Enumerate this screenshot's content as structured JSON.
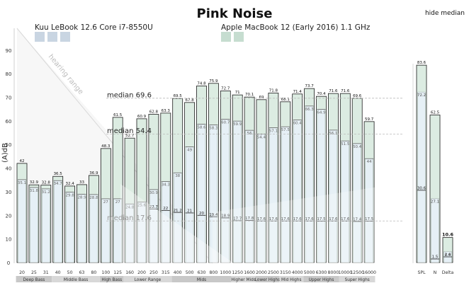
{
  "header": {
    "title": "Pink Noise",
    "hide_median_label": "hide median"
  },
  "legend": {
    "device_a": "Kuu LeBook 12.6 Core i7-8550U",
    "device_b": "Apple MacBook 12 (Early 2016) 1.1 GHz",
    "device_a_color": "#c9d5e2",
    "device_b_color": "#c6ddd0"
  },
  "annotations": {
    "hearing_range": "hearing range"
  },
  "colors": {
    "bar_fill": "#dcece2",
    "inner_fill": "#e6f0f6",
    "bar_stroke": "#1a1a1a",
    "group_band": "#c8c8c8",
    "gray_overlay": "#bdbdbd"
  },
  "chart_data": {
    "type": "bar",
    "title": "Pink Noise",
    "ylabel": "(A)dB",
    "ylim": [
      0,
      100
    ],
    "yticks": [
      0,
      10,
      20,
      30,
      40,
      50,
      60,
      70,
      80,
      90
    ],
    "categories": [
      "20",
      "25",
      "31",
      "40",
      "50",
      "63",
      "80",
      "100",
      "125",
      "160",
      "200",
      "250",
      "315",
      "400",
      "500",
      "630",
      "800",
      "1000",
      "1250",
      "1600",
      "2000",
      "2500",
      "3150",
      "4000",
      "5000",
      "6300",
      "8000",
      "10000",
      "12500",
      "16000"
    ],
    "series": [
      {
        "name": "Kuu LeBook 12.6 Core i7-8550U",
        "values": [
          42,
          32.9,
          32.8,
          36.5,
          32.4,
          33,
          36.9,
          48.3,
          61.5,
          52.7,
          60.9,
          62.8,
          63.3,
          69.5,
          67.8,
          74.8,
          75.9,
          72.7,
          71,
          70.1,
          69,
          71.8,
          68.1,
          71.4,
          73.7,
          70.4,
          71.6,
          71.6,
          69.6,
          59.7
        ]
      },
      {
        "name": "Apple MacBook 12 (Early 2016) 1.1 GHz",
        "values": [
          35.1,
          31.8,
          31.2,
          34.7,
          29.8,
          28.9,
          28.8,
          27,
          27,
          24.8,
          25.6,
          30.9,
          34.3,
          38,
          49,
          58.6,
          58.3,
          60.7,
          59.9,
          56,
          54.4,
          57.1,
          57.5,
          60.4,
          66.3,
          64.9,
          56.1,
          51.5,
          50.4,
          44
        ]
      },
      {
        "name": "noise floor",
        "values": [
          null,
          null,
          null,
          null,
          null,
          null,
          null,
          null,
          null,
          null,
          null,
          22.7,
          22,
          21.2,
          21,
          20,
          19.4,
          18.9,
          17.7,
          17.8,
          17.6,
          17.6,
          17.6,
          17.6,
          17.6,
          17.5,
          17.6,
          17.6,
          17.4,
          17.5
        ]
      }
    ],
    "groups": [
      {
        "label": "Deep Bass",
        "from": 0,
        "to": 2
      },
      {
        "label": "Middle Bass",
        "from": 3,
        "to": 6
      },
      {
        "label": "High Bass",
        "from": 7,
        "to": 8
      },
      {
        "label": "Lower Range",
        "from": 9,
        "to": 12
      },
      {
        "label": "Mids",
        "from": 13,
        "to": 17
      },
      {
        "label": "Higher Mids",
        "from": 18,
        "to": 19
      },
      {
        "label": "Lower Highs",
        "from": 20,
        "to": 21
      },
      {
        "label": "Mid Highs",
        "from": 22,
        "to": 23
      },
      {
        "label": "Upper Highs",
        "from": 24,
        "to": 26
      },
      {
        "label": "Super Highs",
        "from": 27,
        "to": 29
      }
    ],
    "medians": [
      {
        "label": "median 69.6",
        "value": 69.6
      },
      {
        "label": "median 54.4",
        "value": 54.4
      },
      {
        "label": "median 17.6",
        "value": 17.6
      }
    ],
    "summary": {
      "categories": [
        "SPL",
        "N",
        "Delta"
      ],
      "spl": {
        "a": 83.6,
        "b": 72.2,
        "c": 30.6
      },
      "n": {
        "a": 62.5,
        "b": 27.1,
        "c": 1.5
      },
      "delta": {
        "a": 10.6,
        "b": 4.6,
        "c": 2.4
      }
    }
  }
}
